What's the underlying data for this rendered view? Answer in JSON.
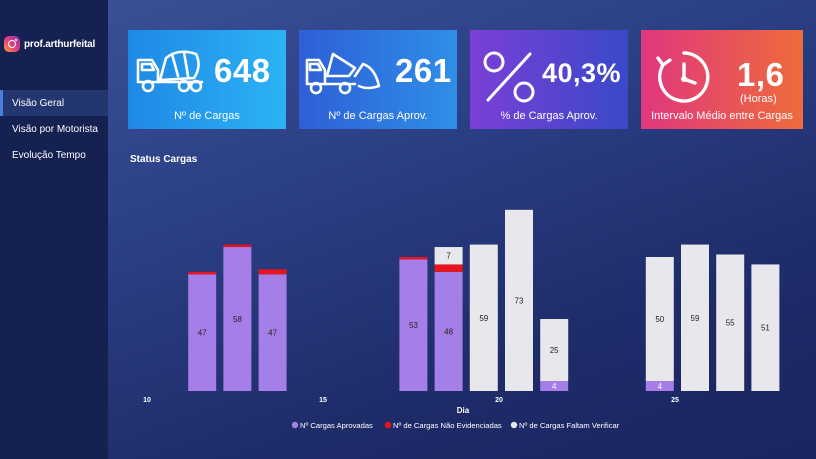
{
  "brand": {
    "handle": "prof.arthurfeital"
  },
  "nav": {
    "items": [
      {
        "label": "Visão Geral",
        "active": true
      },
      {
        "label": "Visão por Motorista",
        "active": false
      },
      {
        "label": "Evolução Tempo",
        "active": false
      }
    ]
  },
  "kpis": {
    "cargas": {
      "value": "648",
      "label": "Nº de Cargas",
      "icon": "cement-truck-icon"
    },
    "aprovadas": {
      "value": "261",
      "label": "Nº de Cargas Aprov.",
      "icon": "dump-truck-icon"
    },
    "percent": {
      "value": "40,3%",
      "label": "%  de Cargas Aprov.",
      "icon": "percent-icon"
    },
    "intervalo": {
      "value": "1,6",
      "unit": "(Horas)",
      "label": "Intervalo Médio entre Cargas",
      "icon": "clock-icon"
    }
  },
  "colors": {
    "aprovadas": "#a57ee8",
    "nao_evidenciadas": "#e8141b",
    "faltam": "#e8e8ec"
  },
  "chart_data": {
    "type": "bar",
    "stacked": true,
    "title": "Status Cargas",
    "xlabel": "Dia",
    "ylabel": "",
    "xlim": [
      9.5,
      27.5
    ],
    "ylim": [
      0,
      83
    ],
    "x_ticks": [
      10,
      15,
      20,
      25
    ],
    "grid": false,
    "legend_position": "bottom",
    "series": [
      {
        "name": "Nº Cargas Aprovadas",
        "color": "#a57ee8",
        "points": [
          {
            "day": 11,
            "value": 47
          },
          {
            "day": 12,
            "value": 58
          },
          {
            "day": 13,
            "value": 47
          },
          {
            "day": 17,
            "value": 53
          },
          {
            "day": 18,
            "value": 48
          },
          {
            "day": 21,
            "value": 4
          },
          {
            "day": 24,
            "value": 4
          }
        ]
      },
      {
        "name": "Nº de Cargas Não Evidenciadas",
        "color": "#e8141b",
        "points": [
          {
            "day": 11,
            "value": 1
          },
          {
            "day": 12,
            "value": 1
          },
          {
            "day": 13,
            "value": 2
          },
          {
            "day": 17,
            "value": 1
          },
          {
            "day": 18,
            "value": 3
          }
        ]
      },
      {
        "name": "Nº de Cargas Faltam Verificar",
        "color": "#e8e8ec",
        "points": [
          {
            "day": 18,
            "value": 7
          },
          {
            "day": 19,
            "value": 59
          },
          {
            "day": 20,
            "value": 73
          },
          {
            "day": 21,
            "value": 25
          },
          {
            "day": 24,
            "value": 50
          },
          {
            "day": 25,
            "value": 59
          },
          {
            "day": 26,
            "value": 55
          },
          {
            "day": 27,
            "value": 51
          }
        ]
      }
    ]
  }
}
